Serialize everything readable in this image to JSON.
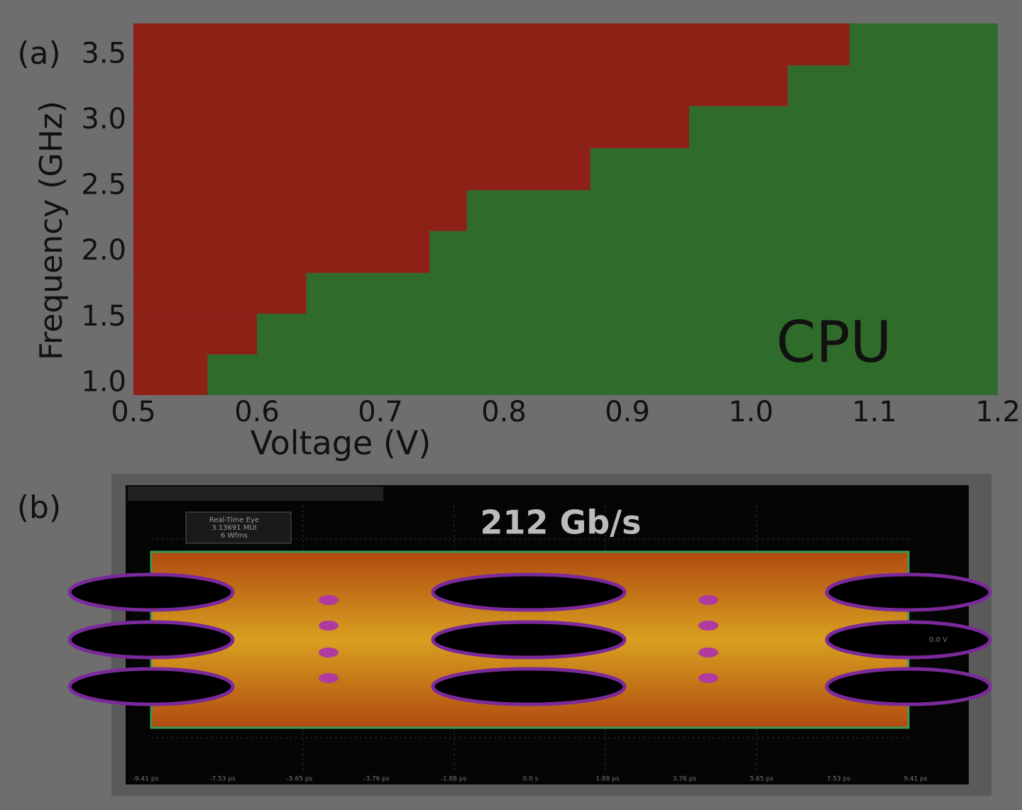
{
  "chart_data": {
    "type": "shmoo",
    "panel_label": "(a)",
    "xlabel": "Voltage (V)",
    "ylabel": "Frequency (GHz)",
    "annotation": "CPU",
    "xlim": [
      0.5,
      1.2
    ],
    "xticks": [
      0.5,
      0.6,
      0.7,
      0.8,
      0.9,
      {
        "value": 1.0,
        "label": "1.0"
      },
      1.1,
      1.2
    ],
    "ylim": [
      0.91,
      3.74
    ],
    "yticks": [
      {
        "value": 1.0,
        "label": "1.0"
      },
      1.5,
      {
        "value": 2.0,
        "label": "2.0"
      },
      2.5,
      {
        "value": 3.0,
        "label": "3.0"
      },
      3.5
    ],
    "y_edges": [
      0.91,
      1.22,
      1.53,
      1.84,
      2.16,
      2.47,
      2.79,
      3.11,
      3.42,
      3.74
    ],
    "pass_min_voltage": [
      0.56,
      0.6,
      0.64,
      0.74,
      0.77,
      0.87,
      0.95,
      1.03,
      1.08
    ],
    "fail_color": "#8e2116",
    "pass_color": "#2f6b2b"
  },
  "eye_panel": {
    "panel_label": "(b)",
    "title": "212 Gb/s",
    "info": [
      "Real-Time Eye",
      "3.13691 MUI",
      "6 Wfms"
    ],
    "voltage_label": "0.0 V",
    "time_labels": [
      "-9.41 ps",
      "-7.53 ps",
      "-5.65 ps",
      "-3.76 ps",
      "-1.88 ps",
      "0.0 s",
      "1.88 ps",
      "3.76 ps",
      "5.65 ps",
      "7.53 ps",
      "9.41 ps"
    ]
  }
}
